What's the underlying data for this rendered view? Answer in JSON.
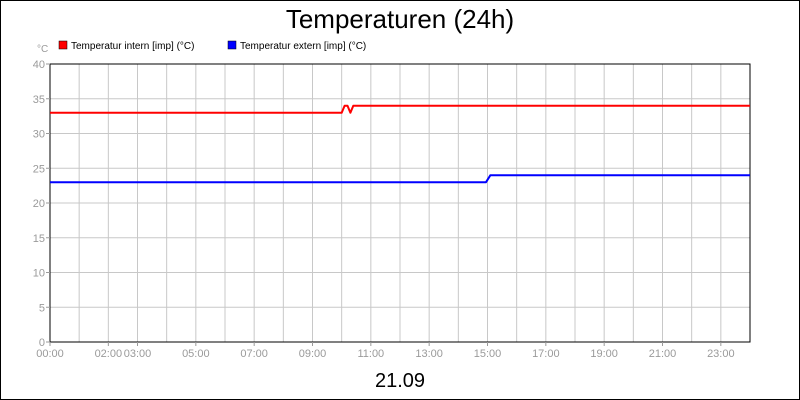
{
  "chart_data": {
    "type": "line",
    "title": "Temperaturen (24h)",
    "y_unit": "°C",
    "date_label": "21.09",
    "xlim": [
      0,
      24
    ],
    "ylim": [
      0,
      40
    ],
    "y_ticks": [
      "0",
      "5",
      "10",
      "15",
      "20",
      "25",
      "30",
      "35",
      "40"
    ],
    "x_ticks": [
      {
        "hour": 0,
        "label": "00:00"
      },
      {
        "hour": 2,
        "label": "02:00"
      },
      {
        "hour": 3,
        "label": "03:00"
      },
      {
        "hour": 5,
        "label": "05:00"
      },
      {
        "hour": 7,
        "label": "07:00"
      },
      {
        "hour": 9,
        "label": "09:00"
      },
      {
        "hour": 11,
        "label": "11:00"
      },
      {
        "hour": 13,
        "label": "13:00"
      },
      {
        "hour": 15,
        "label": "15:00"
      },
      {
        "hour": 17,
        "label": "17:00"
      },
      {
        "hour": 19,
        "label": "19:00"
      },
      {
        "hour": 21,
        "label": "21:00"
      },
      {
        "hour": 23,
        "label": "23:00"
      }
    ],
    "grid": true,
    "legend_position": "top-left",
    "series": [
      {
        "name": "Temperatur intern [imp] (°C)",
        "color": "#ff0000",
        "points": [
          [
            0,
            33
          ],
          [
            10.0,
            33
          ],
          [
            10.1,
            34
          ],
          [
            10.2,
            34
          ],
          [
            10.3,
            33
          ],
          [
            10.4,
            34
          ],
          [
            24,
            34
          ]
        ]
      },
      {
        "name": "Temperatur extern [imp] (°C)",
        "color": "#0000ff",
        "points": [
          [
            0,
            23
          ],
          [
            14.95,
            23
          ],
          [
            15.1,
            24
          ],
          [
            24,
            24
          ]
        ]
      }
    ]
  }
}
